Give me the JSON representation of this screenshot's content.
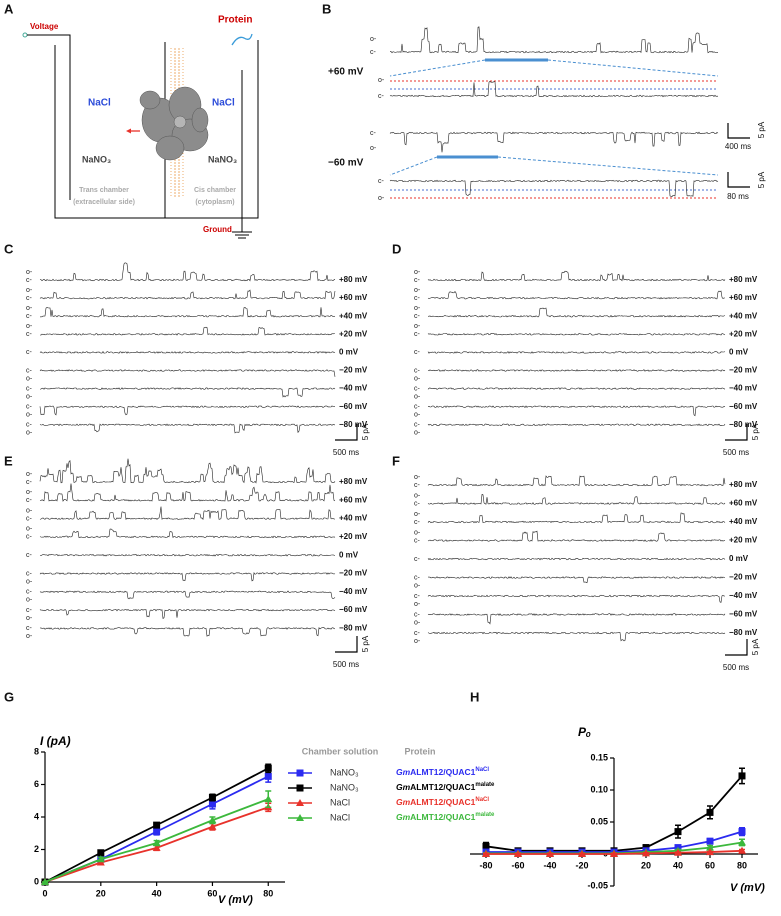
{
  "panel_labels": [
    "A",
    "B",
    "C",
    "D",
    "E",
    "F",
    "G",
    "H"
  ],
  "schematic": {
    "voltage": "Voltage",
    "protein": "Protein",
    "left_salt": "NaCl",
    "right_salt": "NaCl",
    "left_nitrate": "NaNO₃",
    "right_nitrate": "NaNO₃",
    "trans_chamber": "Trans chamber",
    "trans_side": "(extracellular side)",
    "cis_chamber": "Cis chamber",
    "cis_side": "(cytoplasm)",
    "ground": "Ground"
  },
  "recordings_b": {
    "voltages": [
      "+60 mV",
      "−60 mV"
    ],
    "scale_current": "5 pA",
    "scale_time": "400 ms",
    "scale_time_zoom": "80 ms"
  },
  "recordings": {
    "open": "o-",
    "closed": "c-",
    "voltages": [
      "+80 mV",
      "+60 mV",
      "+40 mV",
      "+20 mV",
      "0 mV",
      "−20 mV",
      "−40 mV",
      "−60 mV",
      "−80 mV"
    ],
    "scale_current": "5 pA",
    "scale_time": "500 ms"
  },
  "chart_data": [
    {
      "type": "line",
      "x_label": "V (mV)",
      "y_label": "I (pA)",
      "legend_headers": [
        "Chamber solution",
        "Protein"
      ],
      "x": [
        0,
        20,
        40,
        60,
        80
      ],
      "xlim": [
        0,
        86
      ],
      "xticks": [
        0,
        20,
        40,
        60,
        80
      ],
      "ylim": [
        0,
        8
      ],
      "yticks": [
        0,
        2,
        4,
        6,
        8
      ],
      "series": [
        {
          "name": "NaNO₃",
          "protein_prefix": "Gm",
          "protein": "ALMT12/QUAC1",
          "protein_sup": "NaCl",
          "color": "#2b2bf0",
          "marker": "square",
          "values": [
            0,
            1.4,
            3.1,
            4.8,
            6.5
          ],
          "errors": [
            0,
            0.12,
            0.2,
            0.3,
            0.35
          ]
        },
        {
          "name": "NaNO₃",
          "protein_prefix": "Gm",
          "protein": "ALMT12/QUAC1",
          "protein_sup": "malate",
          "color": "#000000",
          "marker": "square",
          "values": [
            0,
            1.8,
            3.5,
            5.2,
            7.0
          ],
          "errors": [
            0,
            0.12,
            0.15,
            0.2,
            0.25
          ]
        },
        {
          "name": "NaCl",
          "protein_prefix": "Gm",
          "protein": "ALMT12/QUAC1",
          "protein_sup": "NaCl",
          "color": "#e8322b",
          "marker": "triangle",
          "values": [
            0,
            1.2,
            2.1,
            3.4,
            4.6
          ],
          "errors": [
            0,
            0.1,
            0.15,
            0.2,
            0.25
          ]
        },
        {
          "name": "NaCl",
          "protein_prefix": "Gm",
          "protein": "ALMT12/QUAC1",
          "protein_sup": "malate",
          "color": "#3cb83c",
          "marker": "triangle",
          "values": [
            0,
            1.4,
            2.4,
            3.8,
            5.1
          ],
          "errors": [
            0,
            0.12,
            0.15,
            0.2,
            0.5
          ]
        }
      ]
    },
    {
      "type": "line",
      "x_label": "V (mV)",
      "y_label": "Pₒ",
      "x": [
        -80,
        -60,
        -40,
        -20,
        0,
        20,
        40,
        60,
        80
      ],
      "xlim": [
        -90,
        90
      ],
      "xticks": [
        -80,
        -60,
        -40,
        -20,
        20,
        40,
        60,
        80
      ],
      "ylim": [
        -0.05,
        0.15
      ],
      "yticks": [
        -0.05,
        0,
        0.05,
        {
          "value": 0.1,
          "label": "0.10"
        },
        0.15
      ],
      "series": [
        {
          "color": "#000000",
          "marker": "square",
          "values": [
            0.012,
            0.005,
            0.005,
            0.005,
            0.005,
            0.01,
            0.035,
            0.065,
            0.122
          ],
          "errors": [
            0.006,
            0.002,
            0.002,
            0.002,
            0.001,
            0.004,
            0.01,
            0.01,
            0.012
          ]
        },
        {
          "color": "#2b2bf0",
          "marker": "square",
          "values": [
            0.003,
            0.003,
            0.003,
            0.003,
            0.003,
            0.005,
            0.01,
            0.02,
            0.035
          ],
          "errors": [
            0.001,
            0.001,
            0.001,
            0.001,
            0.001,
            0.002,
            0.003,
            0.004,
            0.006
          ]
        },
        {
          "color": "#3cb83c",
          "marker": "triangle",
          "values": [
            0.001,
            0.001,
            0.001,
            0.001,
            0.001,
            0.003,
            0.005,
            0.01,
            0.018
          ],
          "errors": [
            0.001,
            0.001,
            0.001,
            0.001,
            0.001,
            0.001,
            0.002,
            0.003,
            0.005
          ]
        },
        {
          "color": "#e8322b",
          "marker": "triangle",
          "values": [
            0.0,
            0.0,
            0.0,
            0.0,
            0.0,
            0.001,
            0.002,
            0.003,
            0.005
          ],
          "errors": [
            0.001,
            0.001,
            0.001,
            0.001,
            0.001,
            0.001,
            0.001,
            0.001,
            0.002
          ]
        }
      ]
    }
  ]
}
